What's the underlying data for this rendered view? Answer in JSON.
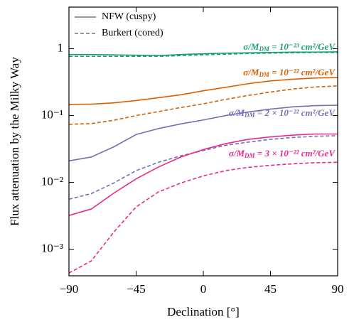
{
  "chart_data": {
    "type": "line",
    "x_label": "Declination [°]",
    "y_label": "Flux attenuation by the Milky Way",
    "x": [
      -90,
      -75,
      -60,
      -45,
      -30,
      -15,
      0,
      15,
      30,
      45,
      60,
      75,
      90
    ],
    "xlim": [
      -90,
      90
    ],
    "xticks": [
      {
        "value": -90,
        "label": "−90"
      },
      {
        "value": -45,
        "label": "−45"
      },
      0,
      45,
      90
    ],
    "ylim": [
      0.0004,
      4.2
    ],
    "log_y": true,
    "yticks": [
      {
        "value": 0.001,
        "label": "10⁻³"
      },
      {
        "value": 0.01,
        "label": "10⁻²"
      },
      {
        "value": 0.1,
        "label": "10⁻¹"
      },
      1
    ],
    "legend_position": "upper left",
    "legend": [
      {
        "name": "NFW (cuspy)",
        "color": "#777777",
        "dashed": false
      },
      {
        "name": "Burkert (cored)",
        "color": "#777777",
        "dashed": true
      }
    ],
    "series": [
      {
        "color": "#1b9e77",
        "dashed": false,
        "values": [
          0.82,
          0.82,
          0.81,
          0.8,
          0.79,
          0.82,
          0.84,
          0.86,
          0.87,
          0.88,
          0.89,
          0.89,
          0.9
        ]
      },
      {
        "color": "#1b9e77",
        "dashed": true,
        "values": [
          0.77,
          0.77,
          0.77,
          0.77,
          0.77,
          0.79,
          0.81,
          0.83,
          0.85,
          0.86,
          0.87,
          0.88,
          0.88
        ]
      },
      {
        "color": "#d95f02",
        "dashed": false,
        "values": [
          0.147,
          0.148,
          0.155,
          0.168,
          0.185,
          0.205,
          0.235,
          0.265,
          0.3,
          0.33,
          0.35,
          0.365,
          0.37
        ]
      },
      {
        "color": "#d95f02",
        "dashed": true,
        "values": [
          0.074,
          0.076,
          0.085,
          0.1,
          0.115,
          0.132,
          0.15,
          0.175,
          0.2,
          0.225,
          0.25,
          0.268,
          0.278
        ]
      },
      {
        "color": "#7570b3",
        "dashed": false,
        "values": [
          0.021,
          0.024,
          0.034,
          0.052,
          0.064,
          0.075,
          0.086,
          0.1,
          0.113,
          0.125,
          0.135,
          0.141,
          0.143
        ]
      },
      {
        "color": "#7570b3",
        "dashed": true,
        "values": [
          0.0056,
          0.0068,
          0.0098,
          0.015,
          0.02,
          0.025,
          0.03,
          0.036,
          0.04,
          0.044,
          0.047,
          0.049,
          0.05
        ]
      },
      {
        "color": "#e7298a",
        "dashed": false,
        "values": [
          0.0032,
          0.004,
          0.0069,
          0.0113,
          0.017,
          0.024,
          0.031,
          0.038,
          0.044,
          0.048,
          0.051,
          0.053,
          0.053
        ]
      },
      {
        "color": "#e7298a",
        "dashed": true,
        "values": [
          0.00044,
          0.00067,
          0.0018,
          0.0043,
          0.0072,
          0.0098,
          0.0125,
          0.015,
          0.0168,
          0.018,
          0.019,
          0.0197,
          0.02
        ]
      }
    ],
    "annotations": [
      {
        "color": "#1b9e77",
        "text": [
          "σ/M",
          "DM",
          " = 10⁻²³ cm²/GeV"
        ]
      },
      {
        "color": "#d95f02",
        "text": [
          "σ/M",
          "DM",
          " = 10⁻²² cm²/GeV"
        ]
      },
      {
        "color": "#7570b3",
        "text": [
          "σ/M",
          "DM",
          " = 2 × 10⁻²² cm²/GeV"
        ]
      },
      {
        "color": "#e7298a",
        "text": [
          "σ/M",
          "DM",
          " = 3 × 10⁻²² cm²/GeV"
        ]
      }
    ]
  }
}
